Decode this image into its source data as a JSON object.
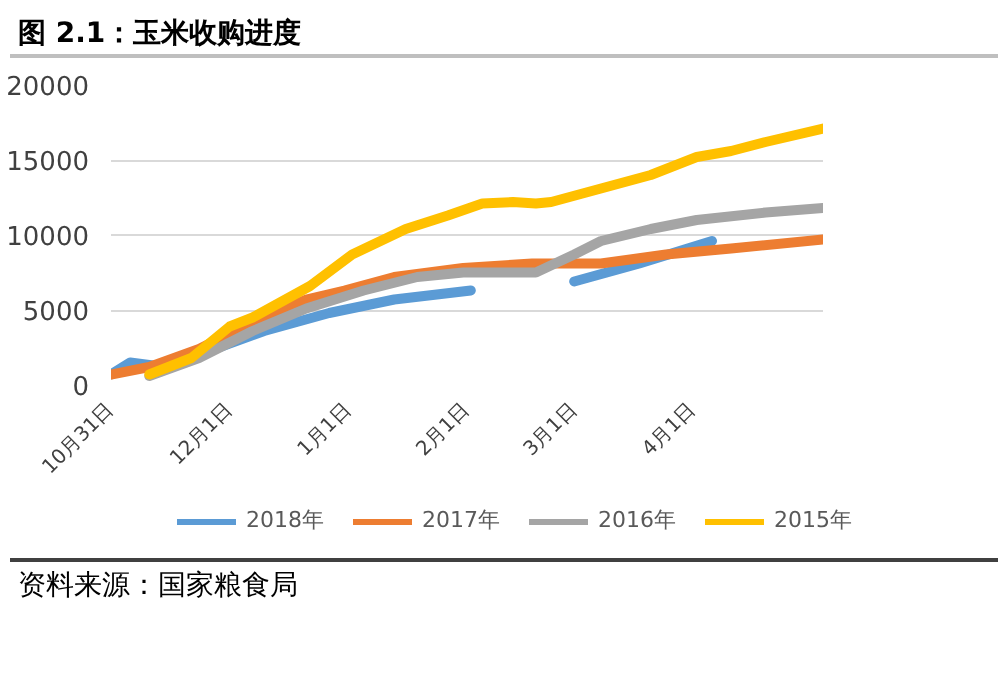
{
  "chart_data": {
    "type": "line",
    "title": "图 2.1：玉米收购进度",
    "annotations": [
      "资料来源：国家粮食局"
    ],
    "xlim": [
      "2018-10-31",
      "2019-05-05"
    ],
    "xticks": [
      {
        "value": "2018-10-31",
        "label": "10月31日"
      },
      {
        "value": "2018-12-01",
        "label": "12月1日"
      },
      {
        "value": "2019-01-01",
        "label": "1月1日"
      },
      {
        "value": "2019-02-01",
        "label": "2月1日"
      },
      {
        "value": "2019-03-01",
        "label": "3月1日"
      },
      {
        "value": "2019-04-01",
        "label": "4月1日"
      }
    ],
    "ylim": [
      0,
      20000
    ],
    "yticks": [
      0,
      5000,
      10000,
      15000,
      20000
    ],
    "grid": "y",
    "legend": "bottom",
    "line_style": "solid",
    "series": [
      {
        "name": "2018年",
        "color": "#5b9bd5",
        "x": [
          "2018-10-31",
          "2018-11-05",
          "2018-11-14",
          "2018-11-27",
          "2018-12-10",
          "2018-12-27",
          "2019-01-13",
          "2019-02-02",
          "2019-02-12",
          "2019-03-01",
          "2019-03-18",
          "2019-04-06"
        ],
        "values": [
          700,
          1500,
          1200,
          2400,
          3600,
          4800,
          5700,
          6300,
          null,
          6900,
          8100,
          9600
        ]
      },
      {
        "name": "2017年",
        "color": "#ed7d31",
        "x": [
          "2018-10-31",
          "2018-11-10",
          "2018-11-23",
          "2018-12-07",
          "2018-12-21",
          "2018-12-31",
          "2019-01-13",
          "2019-01-31",
          "2019-02-18",
          "2019-03-08",
          "2019-03-25",
          "2019-04-11",
          "2019-05-05"
        ],
        "values": [
          700,
          1200,
          2400,
          4200,
          5700,
          6300,
          7200,
          7800,
          8100,
          8100,
          8700,
          9100,
          9700
        ]
      },
      {
        "name": "2016年",
        "color": "#a5a5a5",
        "x": [
          "2018-11-10",
          "2018-11-23",
          "2018-12-07",
          "2018-12-21",
          "2019-01-05",
          "2019-01-19",
          "2019-01-31",
          "2019-02-19",
          "2019-03-01",
          "2019-03-08",
          "2019-03-21",
          "2019-04-02",
          "2019-04-20",
          "2019-05-05"
        ],
        "values": [
          600,
          1800,
          3600,
          5100,
          6300,
          7200,
          7500,
          7500,
          8700,
          9600,
          10400,
          11000,
          11500,
          11800
        ]
      },
      {
        "name": "2015年",
        "color": "#ffc000",
        "x": [
          "2018-11-10",
          "2018-11-21",
          "2018-12-01",
          "2018-12-07",
          "2018-12-22",
          "2019-01-02",
          "2019-01-16",
          "2019-01-27",
          "2019-02-05",
          "2019-02-13",
          "2019-02-19",
          "2019-02-23",
          "2019-03-08",
          "2019-03-21",
          "2019-04-02",
          "2019-04-11",
          "2019-04-20",
          "2019-05-05"
        ],
        "values": [
          700,
          1800,
          3900,
          4500,
          6600,
          8700,
          10400,
          11300,
          12100,
          12200,
          12100,
          12200,
          13100,
          14000,
          15200,
          15600,
          16200,
          17100
        ]
      }
    ]
  }
}
